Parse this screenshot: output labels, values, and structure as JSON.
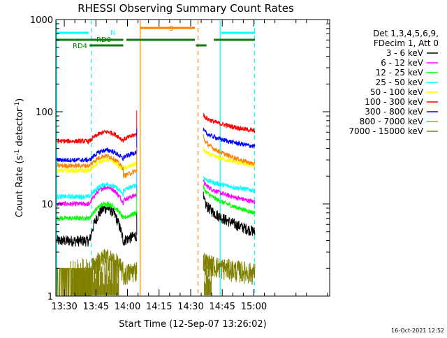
{
  "chart_data": {
    "type": "line",
    "title": "RHESSI Observing Summary Count Rates",
    "xlabel": "Start Time (12-Sep-07 13:26:02)",
    "ylabel_main": "Count Rate (s",
    "ylabel_sup1": "-1",
    "ylabel_mid": " detector",
    "ylabel_sup2": "-1",
    "ylabel_end": ")",
    "yscale": "log",
    "ylim": [
      1,
      1000
    ],
    "xlim_minutes": [
      26.0,
      156.0
    ],
    "x_ticks": [
      {
        "label": "13:30",
        "minutes": 30
      },
      {
        "label": "13:45",
        "minutes": 45
      },
      {
        "label": "14:00",
        "minutes": 60
      },
      {
        "label": "14:15",
        "minutes": 75
      },
      {
        "label": "14:30",
        "minutes": 90
      },
      {
        "label": "14:45",
        "minutes": 105
      },
      {
        "label": "15:00",
        "minutes": 120
      }
    ],
    "y_ticks": [
      {
        "label": "1",
        "value": 1
      },
      {
        "label": "10",
        "value": 10
      },
      {
        "label": "100",
        "value": 100
      },
      {
        "label": "1000",
        "value": 1000
      }
    ],
    "legend_header": [
      "Det 1,3,4,5,6,9,",
      "FDecim 1, Att 0"
    ],
    "series": [
      {
        "name": "3 - 6 keV",
        "color": "#000000",
        "start": 4,
        "mid": 9,
        "end": 4,
        "post_start": 12,
        "post_end": 5
      },
      {
        "name": "6 - 12 keV",
        "color": "#ff00ff",
        "start": 10,
        "mid": 15,
        "end": 11,
        "post_start": 18,
        "post_end": 10.5
      },
      {
        "name": "12 - 25 keV",
        "color": "#00ff00",
        "start": 7,
        "mid": 10,
        "end": 7,
        "post_start": 16,
        "post_end": 8
      },
      {
        "name": "25 - 50 keV",
        "color": "#00ffff",
        "start": 12,
        "mid": 16,
        "end": 14,
        "post_start": 20,
        "post_end": 14
      },
      {
        "name": "50 - 100 keV",
        "color": "#ffff00",
        "start": 23,
        "mid": 30,
        "end": 24,
        "post_start": 40,
        "post_end": 26
      },
      {
        "name": "100 - 300 keV",
        "color": "#ff0000",
        "start": 48,
        "mid": 60,
        "end": 50,
        "post_start": 95,
        "post_end": 62
      },
      {
        "name": "300 - 800 keV",
        "color": "#0000ff",
        "start": 30,
        "mid": 38,
        "end": 32,
        "post_start": 65,
        "post_end": 42
      },
      {
        "name": "800 - 7000 keV",
        "color": "#ff8000",
        "start": 26,
        "mid": 34,
        "end": 20,
        "post_start": 55,
        "post_end": 27
      },
      {
        "name": "7000 - 15000 keV",
        "color": "#808000",
        "start": 1.9,
        "mid": 2.6,
        "end": 1.7,
        "post_start": 2.5,
        "post_end": 1.8
      }
    ],
    "gaps": [
      {
        "from_minutes": 64.5,
        "to_minutes": 96.0
      },
      {
        "from_minutes": 26.0,
        "to_minutes": 26.5
      }
    ],
    "vertical_markers": [
      {
        "minutes": 26.3,
        "color": "#00ffff",
        "style": "solid"
      },
      {
        "minutes": 42.8,
        "color": "#00ffff",
        "style": "dashed"
      },
      {
        "minutes": 120.3,
        "color": "#00ffff",
        "style": "dashed"
      },
      {
        "minutes": 104.0,
        "color": "#00ffff",
        "style": "solid"
      },
      {
        "minutes": 66.0,
        "color": "#ff8000",
        "style": "solid"
      },
      {
        "minutes": 93.5,
        "color": "#ff8000",
        "style": "dashed"
      }
    ],
    "flag_bars": [
      {
        "label": "N",
        "color": "#00ffff",
        "segments": [
          [
            26.0,
            41.5
          ],
          [
            104.5,
            120.5
          ]
        ],
        "level": 1
      },
      {
        "label": "S",
        "color": "#ff8000",
        "segments": [
          [
            66.0,
            92.0
          ]
        ],
        "level": 0
      },
      {
        "label": "RD0",
        "color": "#008000",
        "segments": [
          [
            26.0,
            58.0
          ],
          [
            59.5,
            92.0
          ],
          [
            101.0,
            120.5
          ]
        ],
        "level": 2
      },
      {
        "label": "RD4",
        "color": "#008000",
        "segments": [
          [
            42.0,
            58.0
          ],
          [
            92.5,
            97.5
          ]
        ],
        "level": 3
      }
    ],
    "timestamp": "16-Oct-2021 12:52"
  }
}
